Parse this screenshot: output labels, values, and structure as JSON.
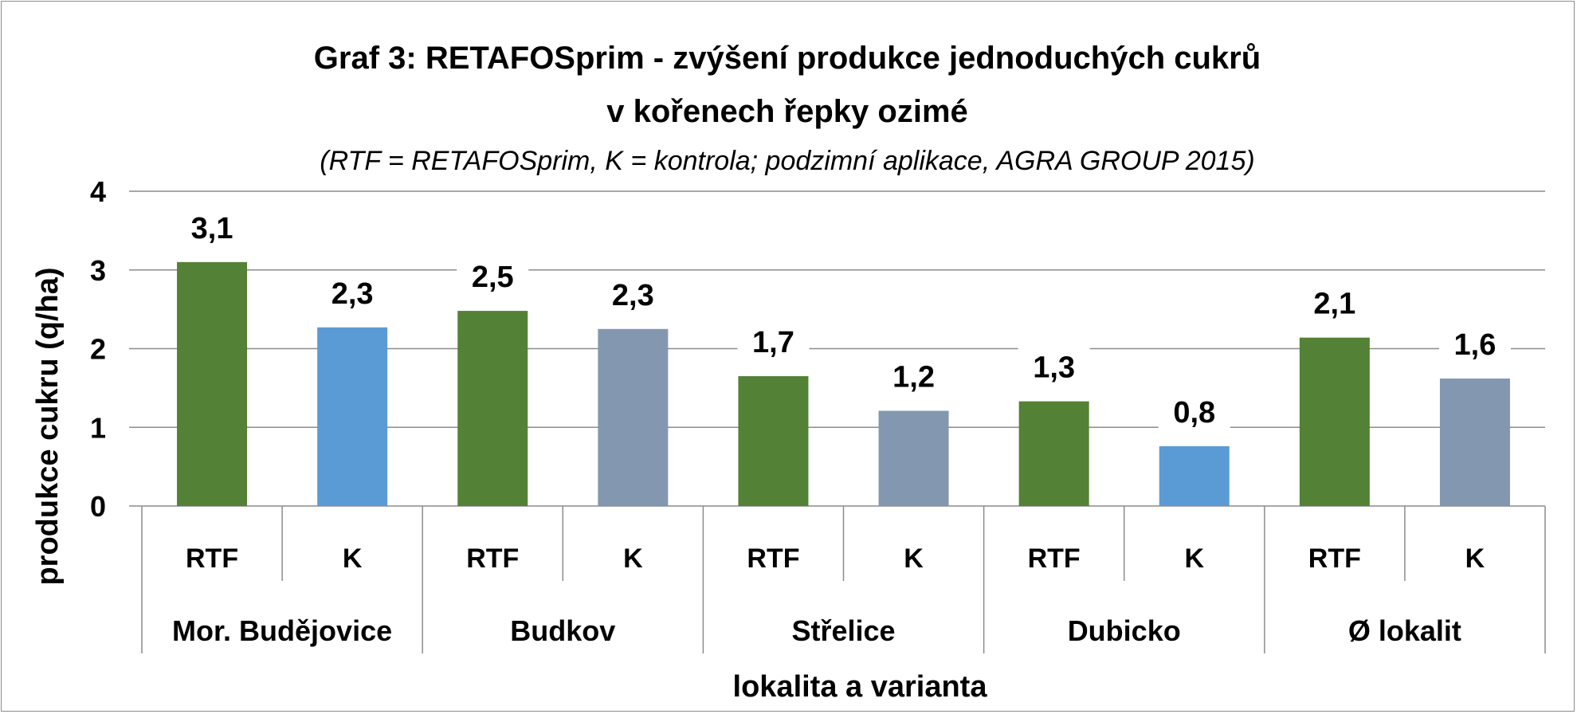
{
  "chart_data": {
    "type": "bar",
    "title_line1": "Graf 3: RETAFOSprim - zvýšení produkce jednoduchých cukrů",
    "title_line2": "v kořenech řepky ozimé",
    "subtitle": "(RTF = RETAFOSprim, K = kontrola; podzimní aplikace, AGRA GROUP 2015)",
    "xlabel": "lokalita a varianta",
    "ylabel": "produkce cukru (q/ha)",
    "ylim": [
      0,
      4
    ],
    "yticks": [
      "0",
      "1",
      "2",
      "3",
      "4"
    ],
    "grid": true,
    "groups": [
      "Mor. Budějovice",
      "Budkov",
      "Střelice",
      "Dubicko",
      "Ø lokalit"
    ],
    "categories": [
      "RTF",
      "K",
      "RTF",
      "K",
      "RTF",
      "K",
      "RTF",
      "K",
      "RTF",
      "K"
    ],
    "values": [
      3.1,
      2.27,
      2.48,
      2.25,
      1.65,
      1.21,
      1.33,
      0.76,
      2.14,
      1.62
    ],
    "value_labels": [
      "3,1",
      "2,3",
      "2,5",
      "2,3",
      "1,7",
      "1,2",
      "1,3",
      "0,8",
      "2,1",
      "1,6"
    ],
    "colors": [
      "#538135",
      "#5b9bd5",
      "#538135",
      "#8497b0",
      "#538135",
      "#8497b0",
      "#538135",
      "#5b9bd5",
      "#538135",
      "#8497b0"
    ]
  }
}
